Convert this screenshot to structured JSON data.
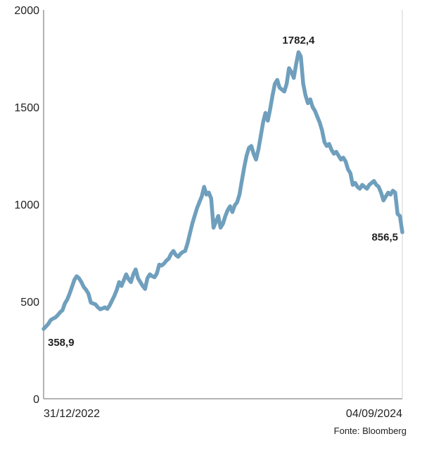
{
  "chart_data": {
    "type": "line",
    "title": "",
    "xlabel": "",
    "ylabel": "",
    "ylim": [
      0,
      2000
    ],
    "yticks": [
      0,
      500,
      1000,
      1500,
      2000
    ],
    "x_start_label": "31/12/2022",
    "x_end_label": "04/09/2024",
    "grid": false,
    "series_color": "#6f9fbd",
    "axis_color": "#9a9a9a",
    "annotations": {
      "start": "358,9",
      "peak": "1782,4",
      "end": "856,5"
    },
    "series": [
      {
        "values": [
          358.9,
          372,
          385,
          405,
          412,
          418,
          430,
          445,
          455,
          490,
          510,
          540,
          575,
          610,
          630,
          620,
          600,
          575,
          560,
          540,
          495,
          490,
          485,
          470,
          460,
          465,
          470,
          462,
          480,
          505,
          530,
          560,
          600,
          580,
          610,
          640,
          615,
          600,
          640,
          665,
          620,
          600,
          580,
          565,
          620,
          640,
          630,
          625,
          645,
          690,
          685,
          695,
          710,
          720,
          745,
          760,
          740,
          730,
          745,
          755,
          760,
          800,
          850,
          900,
          940,
          980,
          1010,
          1040,
          1090,
          1050,
          1060,
          1030,
          880,
          910,
          940,
          880,
          900,
          940,
          970,
          990,
          960,
          995,
          1010,
          1050,
          1120,
          1190,
          1250,
          1290,
          1300,
          1260,
          1230,
          1280,
          1350,
          1420,
          1470,
          1430,
          1490,
          1560,
          1620,
          1640,
          1600,
          1590,
          1580,
          1620,
          1700,
          1680,
          1650,
          1720,
          1782.4,
          1760,
          1620,
          1560,
          1520,
          1540,
          1500,
          1480,
          1450,
          1420,
          1380,
          1320,
          1300,
          1310,
          1280,
          1260,
          1270,
          1250,
          1230,
          1240,
          1220,
          1180,
          1160,
          1100,
          1110,
          1090,
          1080,
          1100,
          1090,
          1080,
          1100,
          1110,
          1120,
          1100,
          1090,
          1060,
          1020,
          1040,
          1060,
          1050,
          1070,
          1060,
          950,
          940,
          856.5
        ]
      }
    ]
  },
  "source": "Fonte: Bloomberg"
}
